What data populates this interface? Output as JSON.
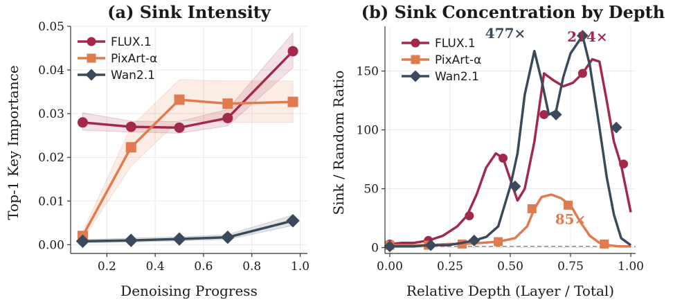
{
  "colors": {
    "flux": "#a3294b",
    "pixart": "#e07a4f",
    "wan": "#3a4a5c",
    "refline": "#888888"
  },
  "chart_data": [
    {
      "type": "line",
      "title": "(a) Sink Intensity",
      "xlabel": "Denoising Progress",
      "ylabel": "Top-1 Key Importance",
      "xlim": [
        0.05,
        1.03
      ],
      "ylim": [
        -0.002,
        0.05
      ],
      "xticks": [
        0.2,
        0.4,
        0.6,
        0.8,
        1.0
      ],
      "xtick_labels": [
        "0.2",
        "0.4",
        "0.6",
        "0.8",
        "1.0"
      ],
      "yticks": [
        0.0,
        0.01,
        0.02,
        0.03,
        0.04,
        0.05
      ],
      "ytick_labels": [
        "0.00",
        "0.01",
        "0.02",
        "0.03",
        "0.04",
        "0.05"
      ],
      "grid": true,
      "legend_position": "top-left",
      "series": [
        {
          "name": "FLUX.1",
          "color_key": "flux",
          "marker": "circle",
          "x": [
            0.1,
            0.3,
            0.5,
            0.7,
            0.97
          ],
          "y": [
            0.028,
            0.027,
            0.0268,
            0.029,
            0.0443
          ],
          "band_low": [
            0.0262,
            0.0258,
            0.0255,
            0.0272,
            0.0405
          ],
          "band_high": [
            0.0302,
            0.0283,
            0.0282,
            0.031,
            0.0485
          ]
        },
        {
          "name": "PixArt-α",
          "color_key": "pixart",
          "marker": "square",
          "x": [
            0.1,
            0.3,
            0.5,
            0.7,
            0.97
          ],
          "y": [
            0.002,
            0.0223,
            0.0332,
            0.0323,
            0.0327
          ],
          "band_low": [
            0.0012,
            0.018,
            0.0285,
            0.028,
            0.028
          ],
          "band_high": [
            0.003,
            0.027,
            0.0378,
            0.0375,
            0.0375
          ]
        },
        {
          "name": "Wan2.1",
          "color_key": "wan",
          "marker": "diamond",
          "x": [
            0.1,
            0.3,
            0.5,
            0.7,
            0.97
          ],
          "y": [
            0.0008,
            0.001,
            0.0013,
            0.0017,
            0.0055
          ],
          "band_low": [
            0.0004,
            0.0006,
            0.0009,
            0.0012,
            0.0044
          ],
          "band_high": [
            0.0012,
            0.0015,
            0.0018,
            0.0023,
            0.0068
          ]
        }
      ]
    },
    {
      "type": "line",
      "title": "(b) Sink Concentration by Depth",
      "xlabel": "Relative Depth (Layer / Total)",
      "ylabel": "Sink / Random Ratio",
      "xlim": [
        -0.02,
        1.02
      ],
      "ylim": [
        -5,
        188
      ],
      "xticks": [
        0.0,
        0.25,
        0.5,
        0.75,
        1.0
      ],
      "xtick_labels": [
        "0.00",
        "0.25",
        "0.50",
        "0.75",
        "1.00"
      ],
      "yticks": [
        0,
        50,
        100,
        150
      ],
      "ytick_labels": [
        "0",
        "50",
        "100",
        "150"
      ],
      "grid": true,
      "legend_position": "top-left",
      "reference_line_y": 1,
      "annotations": [
        {
          "text": "477×",
          "x": 0.48,
          "y": 178,
          "color_key": "wan"
        },
        {
          "text": "214×",
          "x": 0.82,
          "y": 175,
          "color_key": "flux"
        },
        {
          "text": "85×",
          "x": 0.75,
          "y": 20,
          "color_key": "pixart"
        }
      ],
      "series": [
        {
          "name": "FLUX.1",
          "color_key": "flux",
          "marker": "circle",
          "x": [
            0.0,
            0.05,
            0.1,
            0.16,
            0.22,
            0.28,
            0.32,
            0.36,
            0.4,
            0.44,
            0.47,
            0.5,
            0.53,
            0.56,
            0.6,
            0.64,
            0.68,
            0.72,
            0.76,
            0.8,
            0.84,
            0.87,
            0.9,
            0.93,
            0.96,
            1.0
          ],
          "y": [
            3,
            4,
            4,
            6,
            10,
            18,
            27,
            45,
            68,
            80,
            76,
            58,
            40,
            50,
            90,
            148,
            142,
            137,
            140,
            148,
            160,
            158,
            125,
            90,
            70,
            30
          ],
          "marker_x": [
            0.0,
            0.16,
            0.33,
            0.47,
            0.64,
            0.8,
            0.97
          ],
          "marker_y": [
            3,
            6,
            27,
            76,
            113,
            148,
            71
          ]
        },
        {
          "name": "PixArt-α",
          "color_key": "pixart",
          "marker": "square",
          "x": [
            0.0,
            0.1,
            0.16,
            0.24,
            0.3,
            0.38,
            0.45,
            0.52,
            0.57,
            0.6,
            0.63,
            0.67,
            0.71,
            0.75,
            0.79,
            0.83,
            0.87,
            0.91,
            0.95,
            1.0
          ],
          "y": [
            2,
            2,
            2,
            3,
            3,
            4,
            5,
            8,
            18,
            33,
            43,
            45,
            42,
            36,
            22,
            10,
            4,
            2,
            1,
            1
          ],
          "marker_x": [
            0.0,
            0.16,
            0.3,
            0.45,
            0.59,
            0.74,
            0.89
          ],
          "marker_y": [
            2,
            2,
            3,
            5,
            33,
            36,
            3
          ]
        },
        {
          "name": "Wan2.1",
          "color_key": "wan",
          "marker": "diamond",
          "x": [
            0.0,
            0.1,
            0.16,
            0.24,
            0.3,
            0.35,
            0.4,
            0.45,
            0.5,
            0.53,
            0.56,
            0.6,
            0.63,
            0.66,
            0.69,
            0.72,
            0.75,
            0.8,
            0.83,
            0.87,
            0.9,
            0.93,
            0.96,
            1.0
          ],
          "y": [
            1,
            1,
            2,
            2,
            4,
            6,
            9,
            18,
            52,
            80,
            130,
            167,
            142,
            113,
            116,
            145,
            165,
            180,
            155,
            102,
            60,
            28,
            8,
            2
          ],
          "marker_x": [
            0.0,
            0.17,
            0.35,
            0.52,
            0.69,
            0.8,
            0.94
          ],
          "marker_y": [
            1,
            2,
            6,
            52,
            113,
            180,
            102
          ]
        }
      ]
    }
  ]
}
